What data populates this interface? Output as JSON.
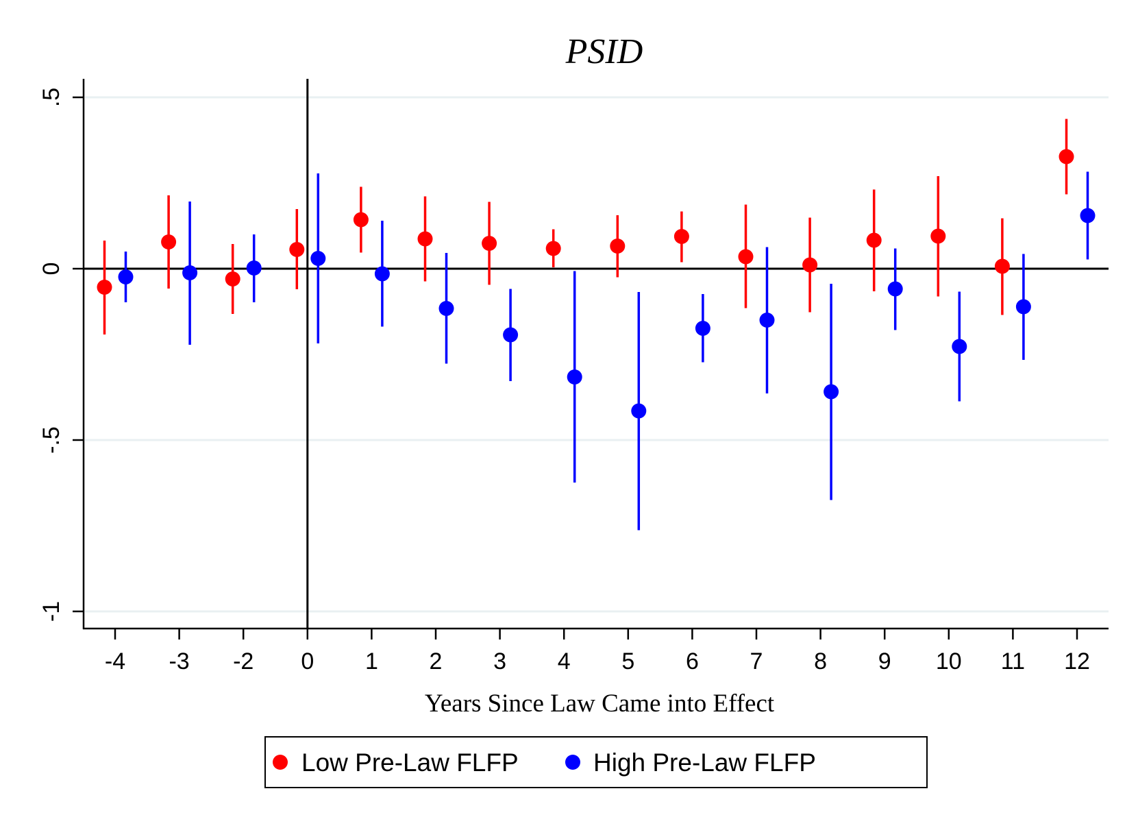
{
  "chart_data": {
    "type": "scatter",
    "subtype": "coefficient-plot-with-confidence-intervals",
    "title": "PSID",
    "xlabel": "Years Since Law Came into Effect",
    "ylabel": "",
    "categories": [
      "-4",
      "-3",
      "-2",
      "0",
      "1",
      "2",
      "3",
      "4",
      "5",
      "6",
      "7",
      "8",
      "9",
      "10",
      "11",
      "12"
    ],
    "yticks": [
      0.5,
      0,
      -0.5,
      -1
    ],
    "ytick_labels": [
      ".5",
      "0",
      "-.5",
      "-1"
    ],
    "ylim": [
      -1.055,
      0.555
    ],
    "grid": true,
    "reference_lines": {
      "horizontal_at_y": 0,
      "vertical_at_category": "0"
    },
    "legend": {
      "placement": "bottom",
      "entries": [
        "Low Pre-Law FLFP",
        "High Pre-Law FLFP"
      ]
    },
    "series": [
      {
        "name": "Low Pre-Law FLFP",
        "color": "#ff0000",
        "values": [
          -0.054,
          0.078,
          -0.03,
          0.056,
          0.143,
          0.087,
          0.074,
          0.059,
          0.066,
          0.094,
          0.035,
          0.011,
          0.083,
          0.095,
          0.007,
          0.327
        ],
        "ci_low": [
          -0.192,
          -0.058,
          -0.132,
          -0.06,
          0.047,
          -0.037,
          -0.047,
          0.004,
          -0.025,
          0.019,
          -0.115,
          -0.127,
          -0.066,
          -0.081,
          -0.135,
          0.217
        ],
        "ci_high": [
          0.082,
          0.214,
          0.072,
          0.174,
          0.239,
          0.211,
          0.195,
          0.115,
          0.156,
          0.167,
          0.187,
          0.149,
          0.231,
          0.27,
          0.147,
          0.437
        ]
      },
      {
        "name": "High Pre-Law FLFP",
        "color": "#0000ff",
        "values": [
          -0.024,
          -0.012,
          0.002,
          0.03,
          -0.015,
          -0.116,
          -0.193,
          -0.316,
          -0.415,
          -0.174,
          -0.15,
          -0.359,
          -0.059,
          -0.227,
          -0.111,
          0.155
        ],
        "ci_low": [
          -0.098,
          -0.222,
          -0.098,
          -0.218,
          -0.169,
          -0.277,
          -0.328,
          -0.624,
          -0.763,
          -0.273,
          -0.364,
          -0.675,
          -0.179,
          -0.387,
          -0.266,
          0.027
        ],
        "ci_high": [
          0.05,
          0.196,
          0.1,
          0.278,
          0.14,
          0.046,
          -0.059,
          -0.007,
          -0.068,
          -0.074,
          0.063,
          -0.044,
          0.059,
          -0.067,
          0.043,
          0.283
        ]
      }
    ]
  }
}
